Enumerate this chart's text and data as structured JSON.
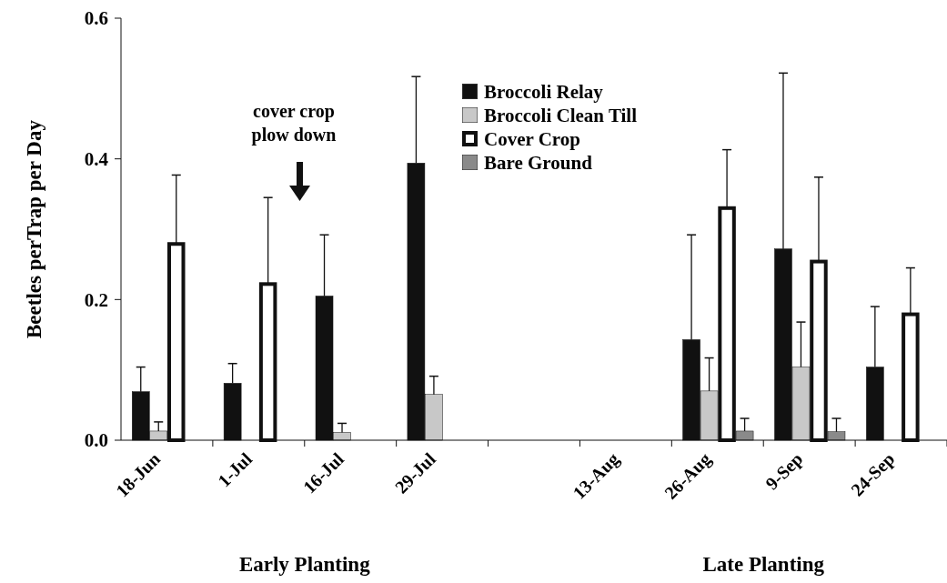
{
  "chart_data": {
    "type": "bar",
    "ylabel": "Beetles perTrap per Day",
    "categories": [
      "18-Jun",
      "1-Jul",
      "16-Jul",
      "29-Jul",
      null,
      "13-Aug",
      "26-Aug",
      "9-Sep",
      "24-Sep"
    ],
    "series": [
      {
        "name": "Broccoli Relay",
        "color": "#111111",
        "values": [
          0.069,
          0.081,
          0.205,
          0.394,
          null,
          null,
          0.143,
          0.272,
          0.104
        ],
        "errors": [
          [
            0.069,
            0.104
          ],
          [
            0.081,
            0.109
          ],
          [
            0.205,
            0.292
          ],
          [
            0.394,
            0.517
          ],
          null,
          null,
          [
            0.143,
            0.292
          ],
          [
            0.272,
            0.522
          ],
          [
            0.104,
            0.19
          ]
        ]
      },
      {
        "name": "Broccoli Clean Till",
        "color": "#c8c8c8",
        "values": [
          0.013,
          null,
          0.011,
          0.065,
          null,
          null,
          0.07,
          0.104,
          null
        ],
        "errors": [
          [
            0.013,
            0.026
          ],
          null,
          [
            0.011,
            0.024
          ],
          [
            0.065,
            0.091
          ],
          null,
          null,
          [
            0.07,
            0.117
          ],
          [
            0.104,
            0.168
          ],
          null
        ]
      },
      {
        "name": "Cover Crop",
        "color": "#ffffff",
        "values": [
          0.279,
          0.222,
          null,
          null,
          null,
          null,
          0.33,
          0.254,
          0.179
        ],
        "errors": [
          [
            0.279,
            0.377
          ],
          [
            0.222,
            0.345
          ],
          null,
          null,
          null,
          null,
          [
            0.33,
            0.413
          ],
          [
            0.254,
            0.374
          ],
          [
            0.179,
            0.245
          ]
        ]
      },
      {
        "name": "Bare Ground",
        "color": "#8a8a8a",
        "values": [
          null,
          null,
          null,
          null,
          null,
          null,
          0.013,
          0.012,
          null
        ],
        "errors": [
          null,
          null,
          null,
          null,
          null,
          null,
          [
            0.013,
            0.031
          ],
          [
            0.012,
            0.031
          ],
          null
        ]
      }
    ],
    "ylim": [
      0,
      0.6
    ],
    "yticks": [
      {
        "value": 0,
        "label": "0.0"
      },
      0.2,
      0.4,
      0.6
    ],
    "legend": "top",
    "grid": false,
    "annotations": [
      "cover crop plow down",
      "Early Planting",
      "Late Planting"
    ]
  }
}
